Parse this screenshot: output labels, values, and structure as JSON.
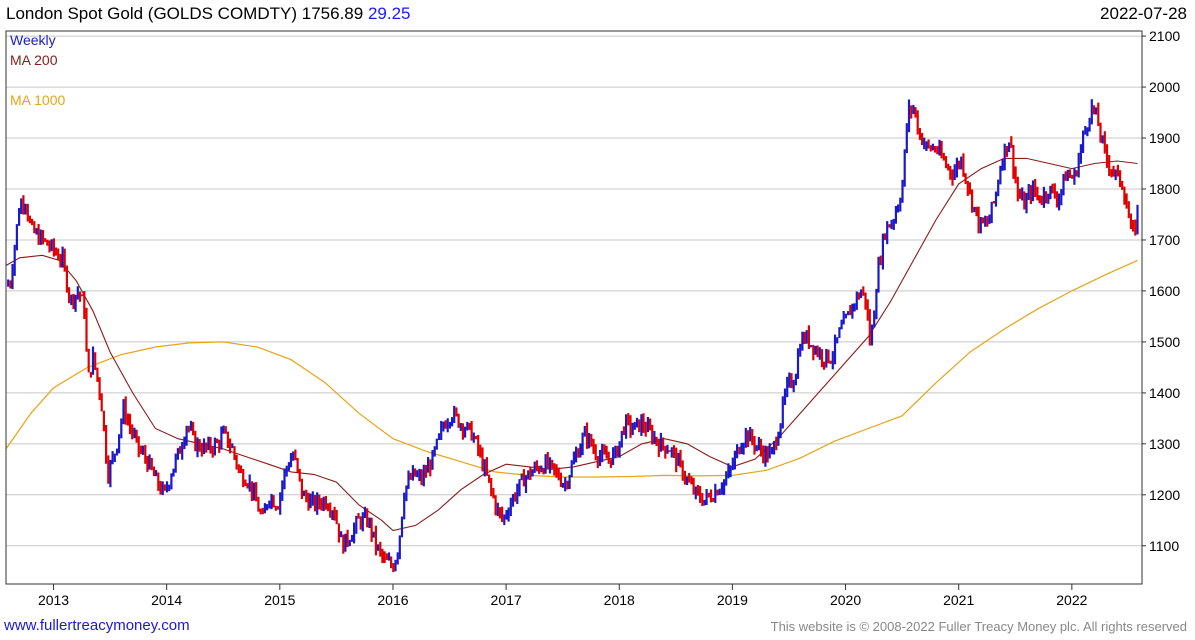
{
  "header": {
    "title": "London Spot Gold (GOLDS COMDTY)",
    "last": "1756.89",
    "change": "29.25",
    "date": "2022-07-28"
  },
  "footer": {
    "url": "www.fullertreacymoney.com",
    "copyright": "This website is © 2008-2022 Fuller Treacy Money plc. All rights reserved"
  },
  "colors": {
    "up": "#1a1acc",
    "down": "#e00000",
    "ma200": "#8b1a1a",
    "ma1000": "#e8a317",
    "grid": "#c8c8c8",
    "frame": "#333333"
  },
  "chart_data": {
    "type": "line",
    "title": "London Spot Gold (GOLDS COMDTY)",
    "frequency_label": "Weekly",
    "legend": [
      "Weekly",
      "MA 200",
      "MA 1000"
    ],
    "legend_position": "top-left",
    "y_axis_position": "right",
    "ylim": [
      1025,
      2110
    ],
    "yticks": [
      1100,
      1200,
      1300,
      1400,
      1500,
      1600,
      1700,
      1800,
      1900,
      2000,
      2100
    ],
    "xlim": [
      2012.58,
      2022.62
    ],
    "xticks": [
      2013,
      2014,
      2015,
      2016,
      2017,
      2018,
      2019,
      2020,
      2021,
      2022
    ],
    "xtick_labels": [
      "2013",
      "2014",
      "2015",
      "2016",
      "2017",
      "2018",
      "2019",
      "2020",
      "2021",
      "2022"
    ],
    "grid": true,
    "series": [
      {
        "name": "Weekly",
        "style": "weekly bars, blue up / red down",
        "x": [
          2012.58,
          2012.62,
          2012.7,
          2012.75,
          2012.8,
          2012.9,
          2013.0,
          2013.08,
          2013.15,
          2013.22,
          2013.28,
          2013.3,
          2013.35,
          2013.42,
          2013.48,
          2013.55,
          2013.62,
          2013.68,
          2013.75,
          2013.82,
          2013.9,
          2013.98,
          2014.05,
          2014.12,
          2014.18,
          2014.25,
          2014.35,
          2014.45,
          2014.5,
          2014.58,
          2014.65,
          2014.72,
          2014.8,
          2014.85,
          2014.9,
          2014.98,
          2015.05,
          2015.12,
          2015.2,
          2015.3,
          2015.4,
          2015.48,
          2015.55,
          2015.62,
          2015.7,
          2015.78,
          2015.85,
          2015.92,
          2016.0,
          2016.05,
          2016.1,
          2016.18,
          2016.25,
          2016.35,
          2016.45,
          2016.52,
          2016.6,
          2016.7,
          2016.78,
          2016.85,
          2016.92,
          2016.97,
          2017.05,
          2017.15,
          2017.25,
          2017.35,
          2017.45,
          2017.52,
          2017.62,
          2017.7,
          2017.8,
          2017.9,
          2017.97,
          2018.05,
          2018.12,
          2018.2,
          2018.28,
          2018.35,
          2018.45,
          2018.55,
          2018.62,
          2018.68,
          2018.75,
          2018.82,
          2018.9,
          2018.97,
          2019.05,
          2019.12,
          2019.2,
          2019.28,
          2019.35,
          2019.42,
          2019.48,
          2019.55,
          2019.6,
          2019.65,
          2019.72,
          2019.8,
          2019.88,
          2019.95,
          2020.02,
          2020.08,
          2020.14,
          2020.18,
          2020.22,
          2020.28,
          2020.35,
          2020.42,
          2020.5,
          2020.55,
          2020.6,
          2020.65,
          2020.72,
          2020.8,
          2020.88,
          2020.95,
          2021.02,
          2021.1,
          2021.18,
          2021.25,
          2021.32,
          2021.38,
          2021.45,
          2021.52,
          2021.58,
          2021.65,
          2021.72,
          2021.8,
          2021.88,
          2021.95,
          2022.02,
          2022.1,
          2022.17,
          2022.22,
          2022.3,
          2022.38,
          2022.45,
          2022.52,
          2022.55,
          2022.58
        ],
        "values": [
          1610,
          1620,
          1770,
          1780,
          1720,
          1700,
          1680,
          1660,
          1580,
          1600,
          1560,
          1420,
          1470,
          1390,
          1240,
          1290,
          1370,
          1330,
          1290,
          1270,
          1230,
          1200,
          1250,
          1290,
          1340,
          1300,
          1290,
          1300,
          1320,
          1290,
          1240,
          1230,
          1180,
          1150,
          1200,
          1180,
          1250,
          1280,
          1200,
          1180,
          1190,
          1170,
          1100,
          1120,
          1150,
          1150,
          1100,
          1070,
          1060,
          1100,
          1210,
          1240,
          1230,
          1270,
          1340,
          1360,
          1340,
          1320,
          1270,
          1220,
          1170,
          1150,
          1190,
          1230,
          1250,
          1260,
          1240,
          1220,
          1280,
          1320,
          1280,
          1270,
          1280,
          1340,
          1330,
          1340,
          1320,
          1300,
          1290,
          1250,
          1220,
          1200,
          1190,
          1200,
          1220,
          1240,
          1290,
          1320,
          1300,
          1280,
          1280,
          1340,
          1410,
          1430,
          1500,
          1510,
          1490,
          1470,
          1470,
          1520,
          1550,
          1580,
          1600,
          1580,
          1490,
          1630,
          1720,
          1740,
          1800,
          1950,
          1960,
          1910,
          1880,
          1880,
          1850,
          1830,
          1860,
          1790,
          1730,
          1730,
          1780,
          1860,
          1900,
          1790,
          1770,
          1800,
          1780,
          1800,
          1780,
          1830,
          1820,
          1900,
          1960,
          1940,
          1860,
          1830,
          1810,
          1720,
          1710,
          1757
        ]
      },
      {
        "name": "MA 200",
        "x": [
          2012.58,
          2012.7,
          2012.9,
          2013.05,
          2013.2,
          2013.35,
          2013.5,
          2013.7,
          2013.9,
          2014.1,
          2014.3,
          2014.5,
          2014.7,
          2014.9,
          2015.1,
          2015.3,
          2015.5,
          2015.7,
          2015.9,
          2016.0,
          2016.2,
          2016.4,
          2016.6,
          2016.8,
          2017.0,
          2017.2,
          2017.4,
          2017.6,
          2017.8,
          2018.0,
          2018.2,
          2018.4,
          2018.6,
          2018.8,
          2019.0,
          2019.2,
          2019.4,
          2019.6,
          2019.8,
          2020.0,
          2020.2,
          2020.4,
          2020.6,
          2020.8,
          2021.0,
          2021.2,
          2021.4,
          2021.6,
          2021.8,
          2022.0,
          2022.2,
          2022.4,
          2022.58
        ],
        "values": [
          1650,
          1665,
          1670,
          1660,
          1620,
          1560,
          1480,
          1400,
          1330,
          1310,
          1300,
          1290,
          1275,
          1260,
          1245,
          1240,
          1225,
          1180,
          1150,
          1130,
          1140,
          1170,
          1210,
          1240,
          1260,
          1255,
          1250,
          1255,
          1265,
          1275,
          1300,
          1310,
          1300,
          1275,
          1255,
          1270,
          1310,
          1360,
          1410,
          1460,
          1510,
          1580,
          1660,
          1740,
          1810,
          1840,
          1860,
          1860,
          1850,
          1840,
          1850,
          1855,
          1850
        ]
      },
      {
        "name": "MA 1000",
        "x": [
          2012.58,
          2012.8,
          2013.0,
          2013.3,
          2013.6,
          2013.9,
          2014.2,
          2014.5,
          2014.8,
          2015.1,
          2015.4,
          2015.7,
          2016.0,
          2016.3,
          2016.6,
          2016.9,
          2017.2,
          2017.5,
          2017.8,
          2018.1,
          2018.4,
          2018.7,
          2019.0,
          2019.3,
          2019.6,
          2019.9,
          2020.2,
          2020.5,
          2020.8,
          2021.1,
          2021.4,
          2021.7,
          2022.0,
          2022.3,
          2022.58
        ],
        "values": [
          1290,
          1360,
          1410,
          1450,
          1475,
          1490,
          1498,
          1500,
          1490,
          1465,
          1420,
          1360,
          1310,
          1285,
          1265,
          1245,
          1238,
          1235,
          1235,
          1236,
          1238,
          1237,
          1238,
          1248,
          1272,
          1305,
          1330,
          1355,
          1420,
          1480,
          1525,
          1565,
          1600,
          1632,
          1660
        ]
      }
    ]
  }
}
